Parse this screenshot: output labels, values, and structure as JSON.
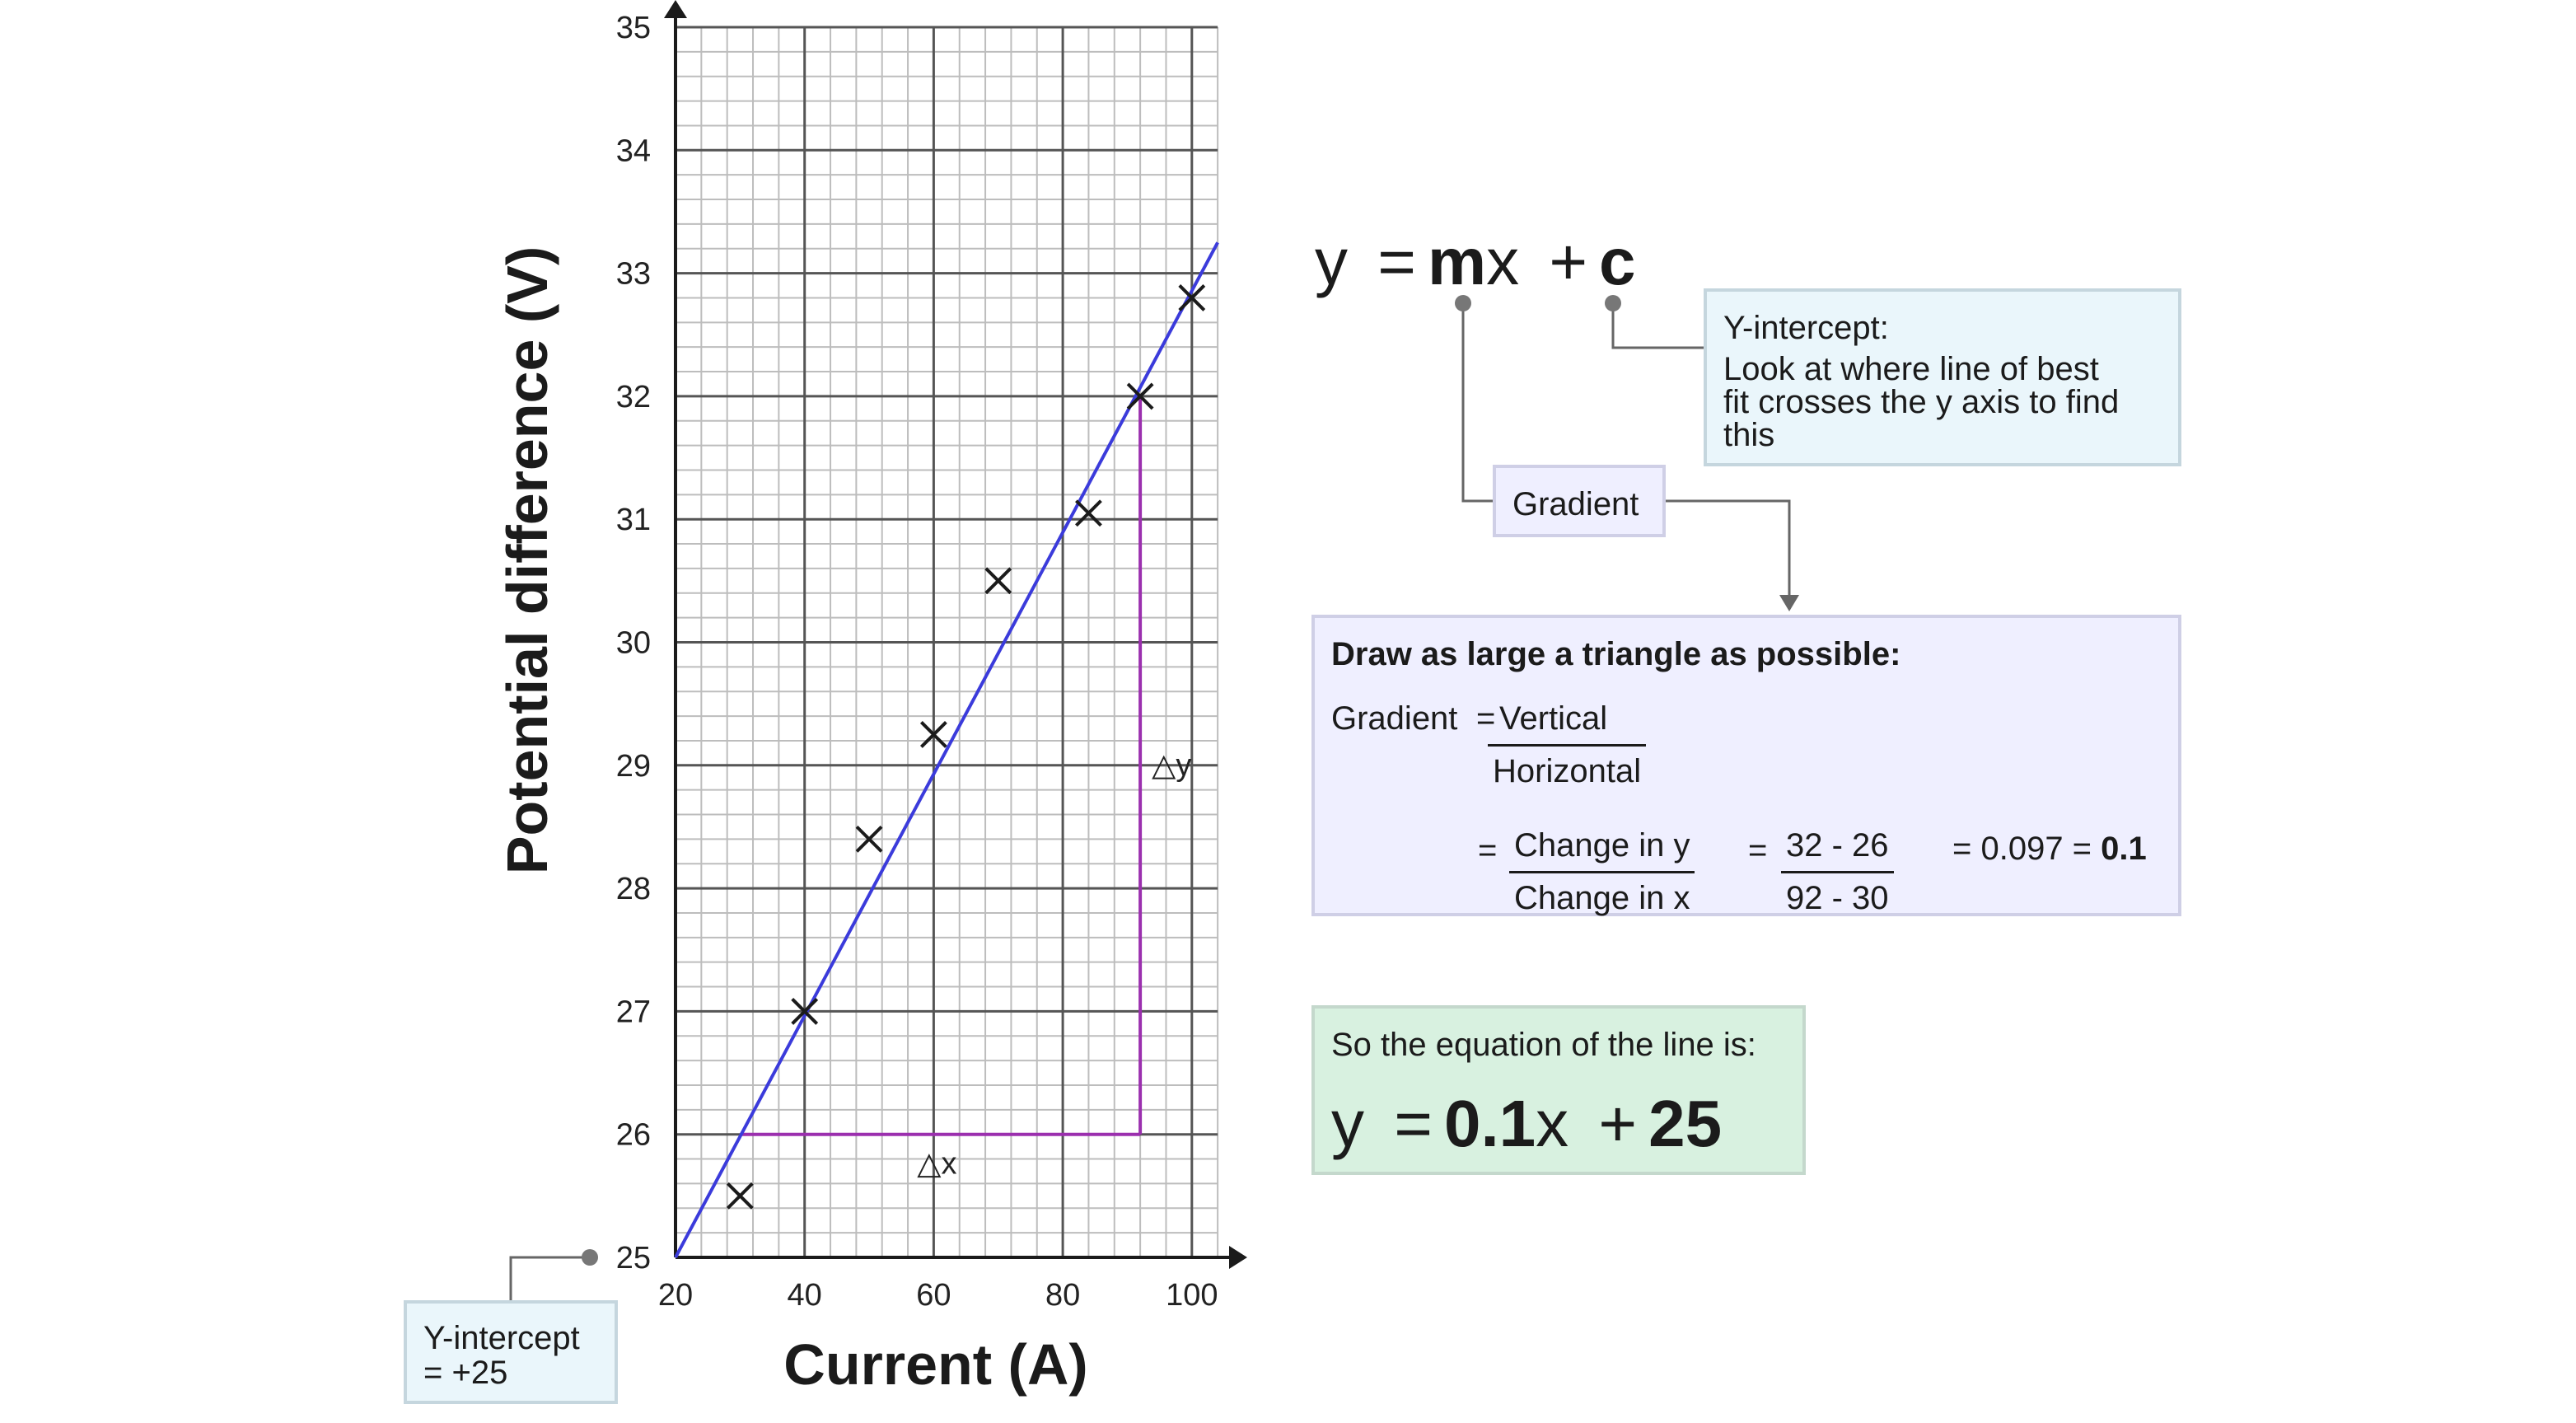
{
  "chart_data": {
    "type": "scatter",
    "xlabel": "Current (A)",
    "ylabel": "Potential difference (V)",
    "xlim": [
      20,
      104
    ],
    "ylim": [
      25,
      35
    ],
    "x_ticks": [
      20,
      40,
      60,
      80,
      100
    ],
    "y_ticks": [
      25,
      26,
      27,
      28,
      29,
      30,
      31,
      32,
      33,
      34,
      35
    ],
    "grid": true,
    "points": [
      {
        "x": 30,
        "y": 25.5
      },
      {
        "x": 40,
        "y": 27.0
      },
      {
        "x": 50,
        "y": 28.4
      },
      {
        "x": 60,
        "y": 29.25
      },
      {
        "x": 70,
        "y": 30.5
      },
      {
        "x": 84,
        "y": 31.05
      },
      {
        "x": 92,
        "y": 32.0
      },
      {
        "x": 100,
        "y": 32.8
      }
    ],
    "best_fit_line": {
      "x": [
        20,
        104
      ],
      "y": [
        25,
        33.25
      ]
    },
    "triangle": {
      "x1": 30,
      "y1": 26,
      "x2": 92,
      "y2": 32
    },
    "triangle_labels": {
      "dx": "△x",
      "dy": "△y"
    },
    "colors": {
      "best_fit": "#3b3bdb",
      "triangle": "#9b2fae",
      "grid_minor": "#bdbdbd",
      "grid_major": "#555555",
      "marker": "#1b1b1b"
    }
  },
  "equation": {
    "y": "y",
    "eq": "=",
    "m": "m",
    "x": "x",
    "plus": "+",
    "c": "c"
  },
  "y_intercept_note": {
    "title": "Y-intercept:",
    "line1": "Look at where line of best",
    "line2": "fit crosses the y axis to find",
    "line3": "this"
  },
  "gradient_label": "Gradient",
  "triangle_box": {
    "heading": "Draw as large a triangle as possible:",
    "gradient": "Gradient",
    "eq": "=",
    "vertical": "Vertical",
    "horizontal": "Horizontal",
    "eq2": "=",
    "change_y": "Change in y",
    "change_x": "Change in x",
    "eq3": "=",
    "num": "32 - 26",
    "den": "92 - 30",
    "result": "= 0.097 =",
    "result_bold": "0.1"
  },
  "result_box": {
    "caption": "So the equation of the line is:",
    "y": "y",
    "eq": "=",
    "m": "0.1",
    "x": "x",
    "plus": "+",
    "c": "25"
  },
  "intercept_box": {
    "line1": "Y-intercept",
    "line2": "= +25"
  }
}
